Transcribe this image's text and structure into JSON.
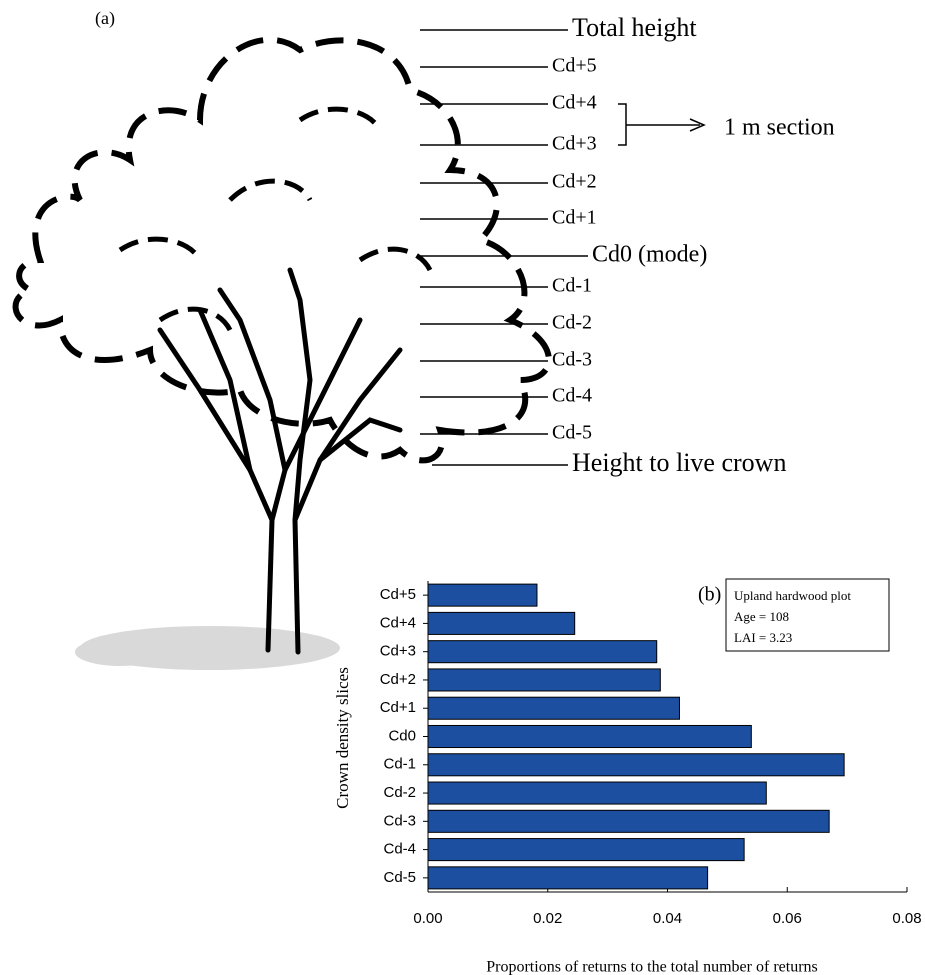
{
  "panel_a": {
    "label": "(a)",
    "markers": [
      "Total height",
      "Cd+5",
      "Cd+4",
      "Cd+3",
      "Cd+2",
      "Cd+1",
      "Cd0 (mode)",
      "Cd-1",
      "Cd-2",
      "Cd-3",
      "Cd-4",
      "Cd-5",
      "Height to live crown"
    ],
    "section_label": "1 m section"
  },
  "chart_data": {
    "type": "bar",
    "orientation": "horizontal",
    "panel_label": "(b)",
    "annotations": [
      "Upland hardwood plot",
      "Age = 108",
      "LAI = 3.23"
    ],
    "x_label": "Proportions of returns to the total number of returns",
    "y_label": "Crown density slices",
    "categories": [
      "Cd+5",
      "Cd+4",
      "Cd+3",
      "Cd+2",
      "Cd+1",
      "Cd0",
      "Cd-1",
      "Cd-2",
      "Cd-3",
      "Cd-4",
      "Cd-5"
    ],
    "values": [
      0.0182,
      0.0245,
      0.0382,
      0.0388,
      0.042,
      0.054,
      0.0695,
      0.0565,
      0.067,
      0.0528,
      0.0467
    ],
    "color": "#1c4fa0",
    "xlim": [
      0,
      0.08
    ],
    "xticks": [
      {
        "value": 0,
        "label": "0.00"
      },
      0.02,
      0.04,
      0.06,
      0.08
    ],
    "grid": false
  }
}
